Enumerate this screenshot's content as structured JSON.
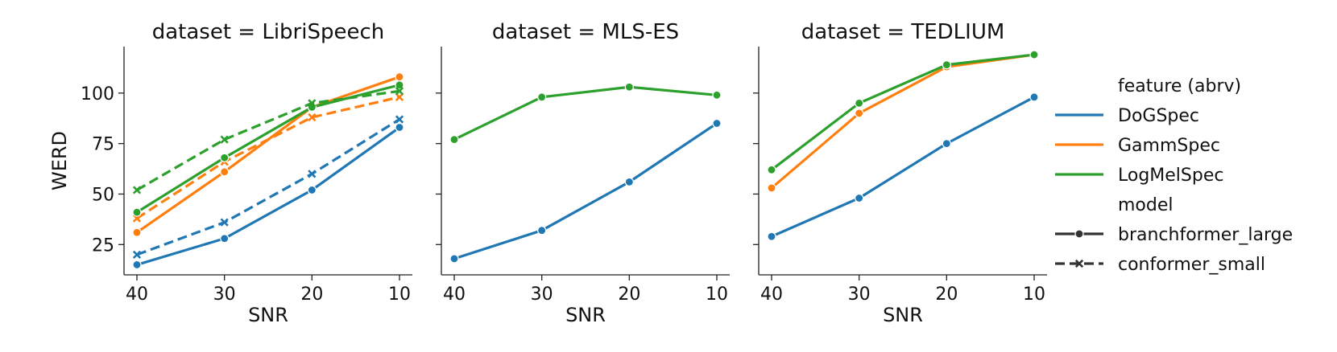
{
  "colors": {
    "DoGSpec": "#1f77b4",
    "GammSpec": "#ff7f0e",
    "LogMelSpec": "#2ca02c"
  },
  "legend": {
    "feature_title": "feature (abrv)",
    "features": [
      "DoGSpec",
      "GammSpec",
      "LogMelSpec"
    ],
    "model_title": "model",
    "models": [
      "branchformer_large",
      "conformer_small"
    ]
  },
  "chart_data": [
    {
      "type": "line",
      "title": "dataset = LibriSpeech",
      "xlabel": "SNR",
      "ylabel": "WERD",
      "categories": [
        "40",
        "30",
        "20",
        "10"
      ],
      "yticks": [
        25,
        50,
        75,
        100
      ],
      "ylim": [
        10,
        123
      ],
      "series": [
        {
          "feature": "DoGSpec",
          "model": "branchformer_large",
          "values": [
            15,
            28,
            52,
            83
          ]
        },
        {
          "feature": "DoGSpec",
          "model": "conformer_small",
          "values": [
            20,
            36,
            60,
            87
          ]
        },
        {
          "feature": "GammSpec",
          "model": "branchformer_large",
          "values": [
            31,
            61,
            93,
            108
          ]
        },
        {
          "feature": "GammSpec",
          "model": "conformer_small",
          "values": [
            38,
            66,
            88,
            98
          ]
        },
        {
          "feature": "LogMelSpec",
          "model": "branchformer_large",
          "values": [
            41,
            68,
            93,
            104
          ]
        },
        {
          "feature": "LogMelSpec",
          "model": "conformer_small",
          "values": [
            52,
            77,
            95,
            101
          ]
        }
      ]
    },
    {
      "type": "line",
      "title": "dataset = MLS-ES",
      "xlabel": "SNR",
      "ylabel": "",
      "categories": [
        "40",
        "30",
        "20",
        "10"
      ],
      "yticks": [
        25,
        50,
        75,
        100
      ],
      "ylim": [
        10,
        123
      ],
      "series": [
        {
          "feature": "DoGSpec",
          "model": "branchformer_large",
          "values": [
            18,
            32,
            56,
            85
          ]
        },
        {
          "feature": "LogMelSpec",
          "model": "branchformer_large",
          "values": [
            77,
            98,
            103,
            99
          ]
        }
      ]
    },
    {
      "type": "line",
      "title": "dataset = TEDLIUM",
      "xlabel": "SNR",
      "ylabel": "",
      "categories": [
        "40",
        "30",
        "20",
        "10"
      ],
      "yticks": [
        25,
        50,
        75,
        100
      ],
      "ylim": [
        10,
        123
      ],
      "series": [
        {
          "feature": "DoGSpec",
          "model": "branchformer_large",
          "values": [
            29,
            48,
            75,
            98
          ]
        },
        {
          "feature": "GammSpec",
          "model": "branchformer_large",
          "values": [
            53,
            90,
            113,
            119
          ]
        },
        {
          "feature": "LogMelSpec",
          "model": "branchformer_large",
          "values": [
            62,
            95,
            114,
            119
          ]
        }
      ]
    }
  ]
}
